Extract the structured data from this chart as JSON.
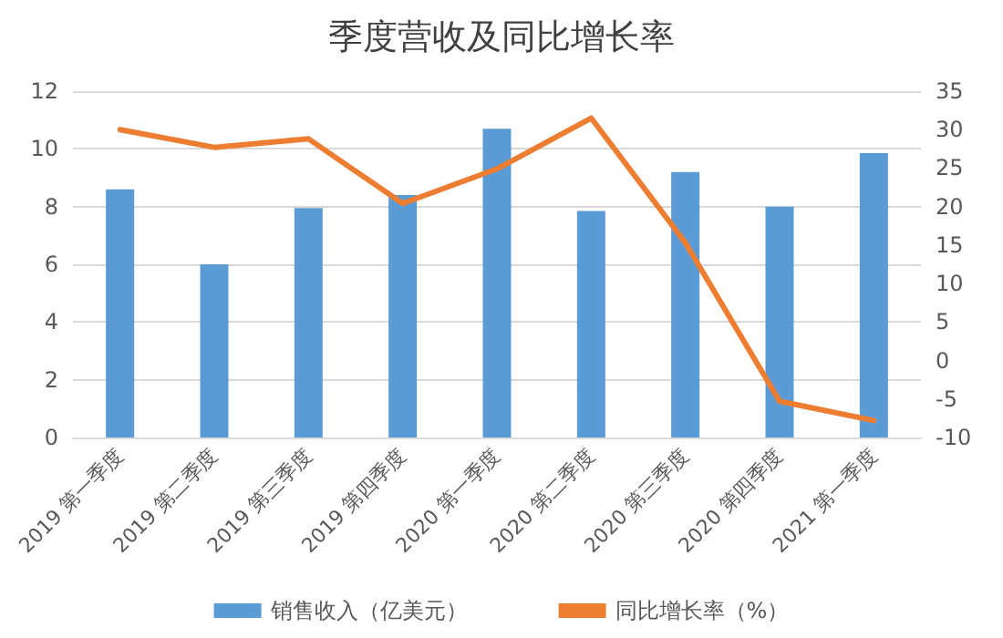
{
  "chart_data": {
    "type": "bar",
    "title": "季度营收及同比增长率",
    "categories": [
      "2019 第一季度",
      "2019 第二季度",
      "2019 第三季度",
      "2019 第四季度",
      "2020 第一季度",
      "2020 第二季度",
      "2020 第三季度",
      "2020 第四季度",
      "2021 第一季度"
    ],
    "series": [
      {
        "name": "销售收入（亿美元）",
        "color": "#5b9bd5",
        "values": [
          8.6,
          6.0,
          7.95,
          8.4,
          10.7,
          7.85,
          9.2,
          8.0,
          9.85
        ]
      },
      {
        "name": "同比增长率（%）",
        "type": "line",
        "axis": "y2",
        "color": "#ed7d31",
        "values": [
          30,
          27.7,
          28.8,
          20.4,
          24.9,
          31.5,
          15.3,
          -5.3,
          -7.8
        ]
      }
    ],
    "ylim": [
      0,
      12
    ],
    "yticks": [
      0,
      2,
      4,
      6,
      8,
      10,
      12
    ],
    "y2lim": [
      -10,
      35
    ],
    "y2ticks": [
      -10,
      -5,
      0,
      5,
      10,
      15,
      20,
      25,
      30,
      35
    ],
    "grid": "y",
    "legend": "bottom",
    "marker": "none",
    "line_style": "solid"
  }
}
